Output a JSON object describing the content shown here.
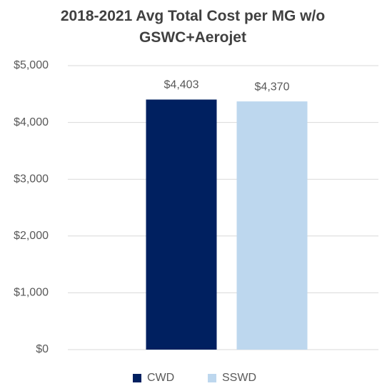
{
  "chart_data": {
    "type": "bar",
    "title": "2018-2021 Avg Total Cost per MG w/o GSWC+Aerojet",
    "categories": [
      null
    ],
    "series": [
      {
        "name": "CWD",
        "color": "#002060",
        "values": [
          4403
        ],
        "value_labels": [
          "$4,403"
        ]
      },
      {
        "name": "SSWD",
        "color": "#bdd7ee",
        "values": [
          4370
        ],
        "value_labels": [
          "$4,370"
        ]
      }
    ],
    "ylim": [
      0,
      5000
    ],
    "yticks": [
      {
        "value": 0,
        "label": "$0"
      },
      {
        "value": 1000,
        "label": "$1,000"
      },
      {
        "value": 2000,
        "label": "$2,000"
      },
      {
        "value": 3000,
        "label": "$3,000"
      },
      {
        "value": 4000,
        "label": "$4,000"
      },
      {
        "value": 5000,
        "label": "$5,000"
      }
    ],
    "grid": true,
    "legend": "bottom"
  }
}
